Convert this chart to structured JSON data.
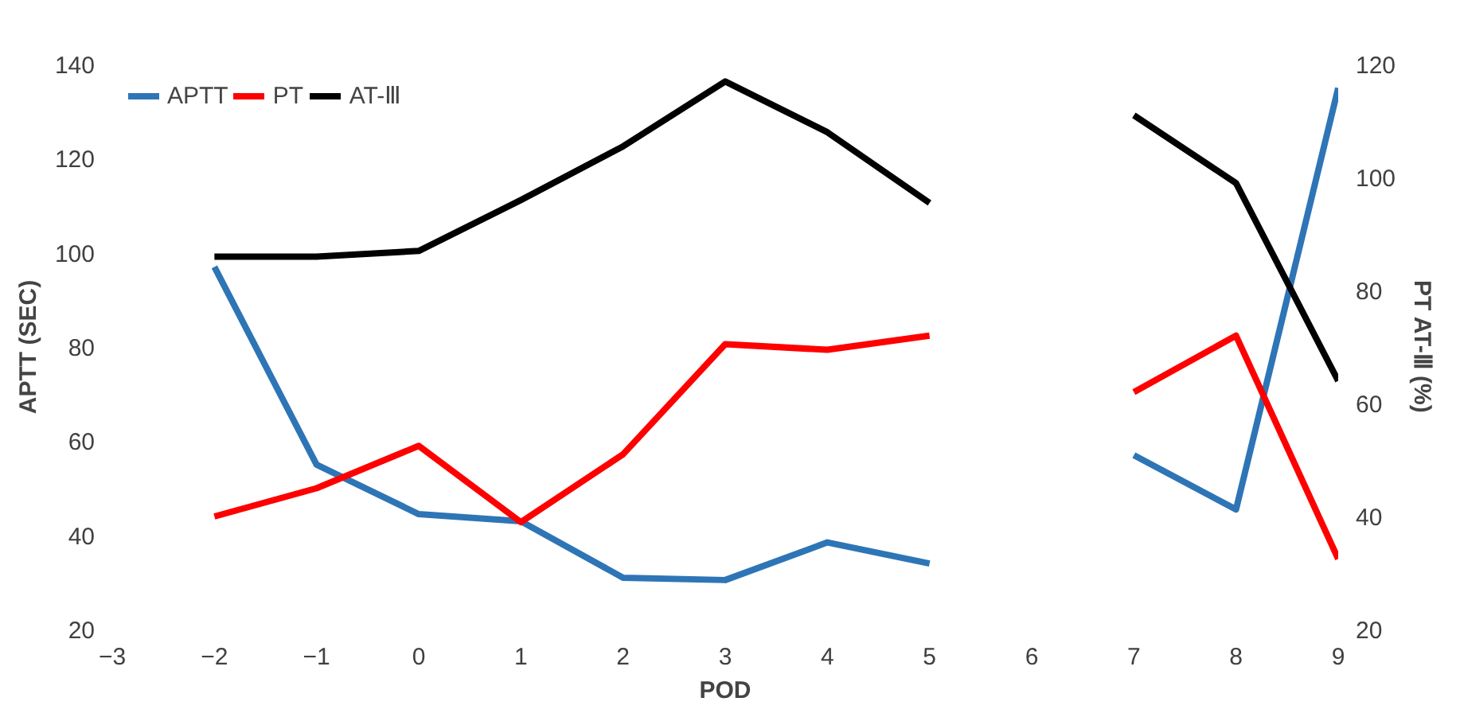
{
  "chart_data": {
    "type": "line",
    "ylabel": "APTT (SEC)",
    "y2label": "PT AT-Ⅲ (%)",
    "xlabel": "POD",
    "x": [
      -2,
      -1,
      0,
      1,
      2,
      3,
      4,
      5,
      6,
      7,
      8,
      9
    ],
    "series": [
      {
        "name": "APTT",
        "color": "#2e75b6",
        "values": [
          97,
          55,
          44.5,
          43,
          31,
          30.5,
          38.5,
          34,
          null,
          57,
          45.5,
          135
        ]
      },
      {
        "name": "PT",
        "color": "#ff0000",
        "axis": "y2",
        "values": [
          40,
          45,
          52.5,
          39,
          51,
          70.5,
          69.5,
          72,
          null,
          62,
          72,
          32.5
        ]
      },
      {
        "name": "AT-Ⅲ",
        "color": "#000000",
        "axis": "y2",
        "values": [
          86,
          86,
          87,
          96,
          105.5,
          117,
          108,
          95.5,
          null,
          111,
          99,
          64
        ]
      }
    ],
    "xlim": [
      -3,
      9
    ],
    "xticks": [
      -3,
      -2,
      -1,
      0,
      1,
      2,
      3,
      4,
      5,
      6,
      7,
      8,
      9
    ],
    "ylim": [
      20,
      140
    ],
    "yticks": [
      20,
      40,
      60,
      80,
      100,
      120,
      140
    ],
    "y2lim": [
      20,
      120
    ],
    "y2ticks": [
      20,
      40,
      60,
      80,
      100,
      120
    ],
    "grid": false,
    "legend": "top left",
    "marker": "none",
    "line_style": "solid"
  }
}
